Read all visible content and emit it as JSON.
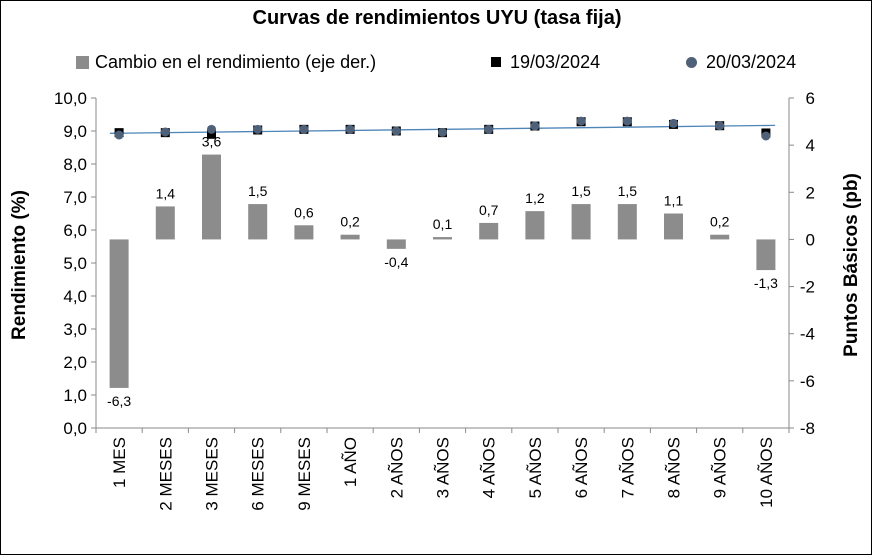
{
  "chart_data": {
    "type": "bar",
    "title": "Curvas de rendimientos UYU (tasa fija)",
    "ylabel": "Rendimiento (%)",
    "y2label": "Puntos Básicos (pb)",
    "ylim": [
      0,
      10
    ],
    "y_ticks": [
      "0,0",
      "1,0",
      "2,0",
      "3,0",
      "4,0",
      "5,0",
      "6,0",
      "7,0",
      "8,0",
      "9,0",
      "10,0"
    ],
    "y2lim": [
      -8,
      6
    ],
    "y2_ticks": [
      "-8",
      "-6",
      "-4",
      "-2",
      "0",
      "2",
      "4",
      "6"
    ],
    "grid": false,
    "legend_position": "top",
    "categories": [
      "1 MES",
      "2 MESES",
      "3 MESES",
      "6 MESES",
      "9 MESES",
      "1 AÑO",
      "2 AÑOS",
      "3 AÑOS",
      "4 AÑOS",
      "5 AÑOS",
      "6 AÑOS",
      "7 AÑOS",
      "8 AÑOS",
      "9 AÑOS",
      "10 AÑOS"
    ],
    "series": [
      {
        "name": "Cambio en el rendimiento (eje der.)",
        "type": "bar",
        "axis": "right",
        "color": "#8c8c8c",
        "values": [
          -6.3,
          1.4,
          3.6,
          1.5,
          0.6,
          0.2,
          -0.4,
          0.1,
          0.7,
          1.2,
          1.5,
          1.5,
          1.1,
          0.2,
          -1.3
        ],
        "labels": [
          "-6,3",
          "1,4",
          "3,6",
          "1,5",
          "0,6",
          "0,2",
          "-0,4",
          "0,1",
          "0,7",
          "1,2",
          "1,5",
          "1,5",
          "1,1",
          "0,2",
          "-1,3"
        ]
      },
      {
        "name": "19/03/2024",
        "type": "scatter",
        "axis": "left",
        "marker": "square",
        "color": "#000000",
        "values": [
          8.95,
          8.95,
          8.9,
          9.03,
          9.05,
          9.05,
          9.0,
          8.95,
          9.05,
          9.15,
          9.28,
          9.28,
          9.2,
          9.16,
          8.94
        ]
      },
      {
        "name": "20/03/2024",
        "type": "scatter",
        "axis": "left",
        "marker": "circle",
        "color": "#4f6079",
        "values": [
          8.88,
          8.97,
          9.05,
          9.05,
          9.05,
          9.05,
          9.0,
          8.96,
          9.05,
          9.15,
          9.3,
          9.3,
          9.23,
          9.16,
          8.85
        ]
      }
    ],
    "trendline": {
      "color": "#4f86b8",
      "y_start": 8.93,
      "y_end": 9.17
    }
  }
}
